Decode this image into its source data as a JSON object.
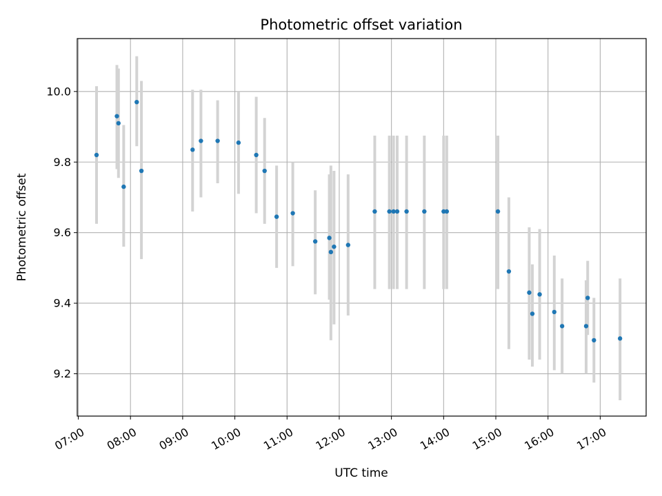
{
  "chart_data": {
    "type": "scatter",
    "title": "Photometric offset variation",
    "xlabel": "UTC time",
    "ylabel": "Photometric offset",
    "x_unit": "hours UTC",
    "xlim": [
      6.98,
      17.88
    ],
    "ylim": [
      9.08,
      10.15
    ],
    "x_ticks": [
      {
        "value": 7,
        "label": "07:00"
      },
      {
        "value": 8,
        "label": "08:00"
      },
      {
        "value": 9,
        "label": "09:00"
      },
      {
        "value": 10,
        "label": "10:00"
      },
      {
        "value": 11,
        "label": "11:00"
      },
      {
        "value": 12,
        "label": "12:00"
      },
      {
        "value": 13,
        "label": "13:00"
      },
      {
        "value": 14,
        "label": "14:00"
      },
      {
        "value": 15,
        "label": "15:00"
      },
      {
        "value": 16,
        "label": "16:00"
      },
      {
        "value": 17,
        "label": "17:00"
      }
    ],
    "y_ticks": [
      {
        "value": 9.2,
        "label": "9.2"
      },
      {
        "value": 9.4,
        "label": "9.4"
      },
      {
        "value": 9.6,
        "label": "9.6"
      },
      {
        "value": 9.8,
        "label": "9.8"
      },
      {
        "value": 10.0,
        "label": "10.0"
      }
    ],
    "grid": true,
    "marker_color": "#1f77b4",
    "errorbar_color": "#d3d3d3",
    "points": [
      {
        "x": 7.35,
        "y": 9.82,
        "err_low": 9.625,
        "err_high": 10.015
      },
      {
        "x": 7.74,
        "y": 9.93,
        "err_low": 9.78,
        "err_high": 10.075
      },
      {
        "x": 7.77,
        "y": 9.91,
        "err_low": 9.755,
        "err_high": 10.065
      },
      {
        "x": 7.87,
        "y": 9.73,
        "err_low": 9.56,
        "err_high": 9.905
      },
      {
        "x": 8.12,
        "y": 9.97,
        "err_low": 9.845,
        "err_high": 10.1
      },
      {
        "x": 8.21,
        "y": 9.775,
        "err_low": 9.525,
        "err_high": 10.03
      },
      {
        "x": 9.19,
        "y": 9.835,
        "err_low": 9.66,
        "err_high": 10.005
      },
      {
        "x": 9.35,
        "y": 9.86,
        "err_low": 9.7,
        "err_high": 10.005
      },
      {
        "x": 9.67,
        "y": 9.86,
        "err_low": 9.74,
        "err_high": 9.975
      },
      {
        "x": 10.07,
        "y": 9.855,
        "err_low": 9.71,
        "err_high": 10.0
      },
      {
        "x": 10.41,
        "y": 9.82,
        "err_low": 9.655,
        "err_high": 9.985
      },
      {
        "x": 10.57,
        "y": 9.775,
        "err_low": 9.625,
        "err_high": 9.925
      },
      {
        "x": 10.8,
        "y": 9.645,
        "err_low": 9.5,
        "err_high": 9.79
      },
      {
        "x": 11.11,
        "y": 9.655,
        "err_low": 9.505,
        "err_high": 9.8
      },
      {
        "x": 11.54,
        "y": 9.575,
        "err_low": 9.425,
        "err_high": 9.72
      },
      {
        "x": 11.81,
        "y": 9.585,
        "err_low": 9.41,
        "err_high": 9.765
      },
      {
        "x": 11.84,
        "y": 9.545,
        "err_low": 9.295,
        "err_high": 9.79
      },
      {
        "x": 11.9,
        "y": 9.56,
        "err_low": 9.34,
        "err_high": 9.775
      },
      {
        "x": 12.17,
        "y": 9.565,
        "err_low": 9.365,
        "err_high": 9.765
      },
      {
        "x": 12.68,
        "y": 9.66,
        "err_low": 9.44,
        "err_high": 9.875
      },
      {
        "x": 12.96,
        "y": 9.66,
        "err_low": 9.44,
        "err_high": 9.875
      },
      {
        "x": 13.04,
        "y": 9.66,
        "err_low": 9.44,
        "err_high": 9.875
      },
      {
        "x": 13.11,
        "y": 9.66,
        "err_low": 9.44,
        "err_high": 9.875
      },
      {
        "x": 13.29,
        "y": 9.66,
        "err_low": 9.44,
        "err_high": 9.875
      },
      {
        "x": 13.63,
        "y": 9.66,
        "err_low": 9.44,
        "err_high": 9.875
      },
      {
        "x": 14.0,
        "y": 9.66,
        "err_low": 9.44,
        "err_high": 9.875
      },
      {
        "x": 14.06,
        "y": 9.66,
        "err_low": 9.44,
        "err_high": 9.875
      },
      {
        "x": 15.04,
        "y": 9.66,
        "err_low": 9.44,
        "err_high": 9.875
      },
      {
        "x": 15.25,
        "y": 9.49,
        "err_low": 9.27,
        "err_high": 9.7
      },
      {
        "x": 15.64,
        "y": 9.43,
        "err_low": 9.24,
        "err_high": 9.615
      },
      {
        "x": 15.7,
        "y": 9.37,
        "err_low": 9.22,
        "err_high": 9.51
      },
      {
        "x": 15.84,
        "y": 9.425,
        "err_low": 9.24,
        "err_high": 9.61
      },
      {
        "x": 16.12,
        "y": 9.375,
        "err_low": 9.21,
        "err_high": 9.535
      },
      {
        "x": 16.27,
        "y": 9.335,
        "err_low": 9.2,
        "err_high": 9.47
      },
      {
        "x": 16.73,
        "y": 9.335,
        "err_low": 9.2,
        "err_high": 9.465
      },
      {
        "x": 16.76,
        "y": 9.415,
        "err_low": 9.31,
        "err_high": 9.52
      },
      {
        "x": 16.88,
        "y": 9.295,
        "err_low": 9.175,
        "err_high": 9.415
      },
      {
        "x": 17.38,
        "y": 9.3,
        "err_low": 9.125,
        "err_high": 9.47
      }
    ]
  }
}
